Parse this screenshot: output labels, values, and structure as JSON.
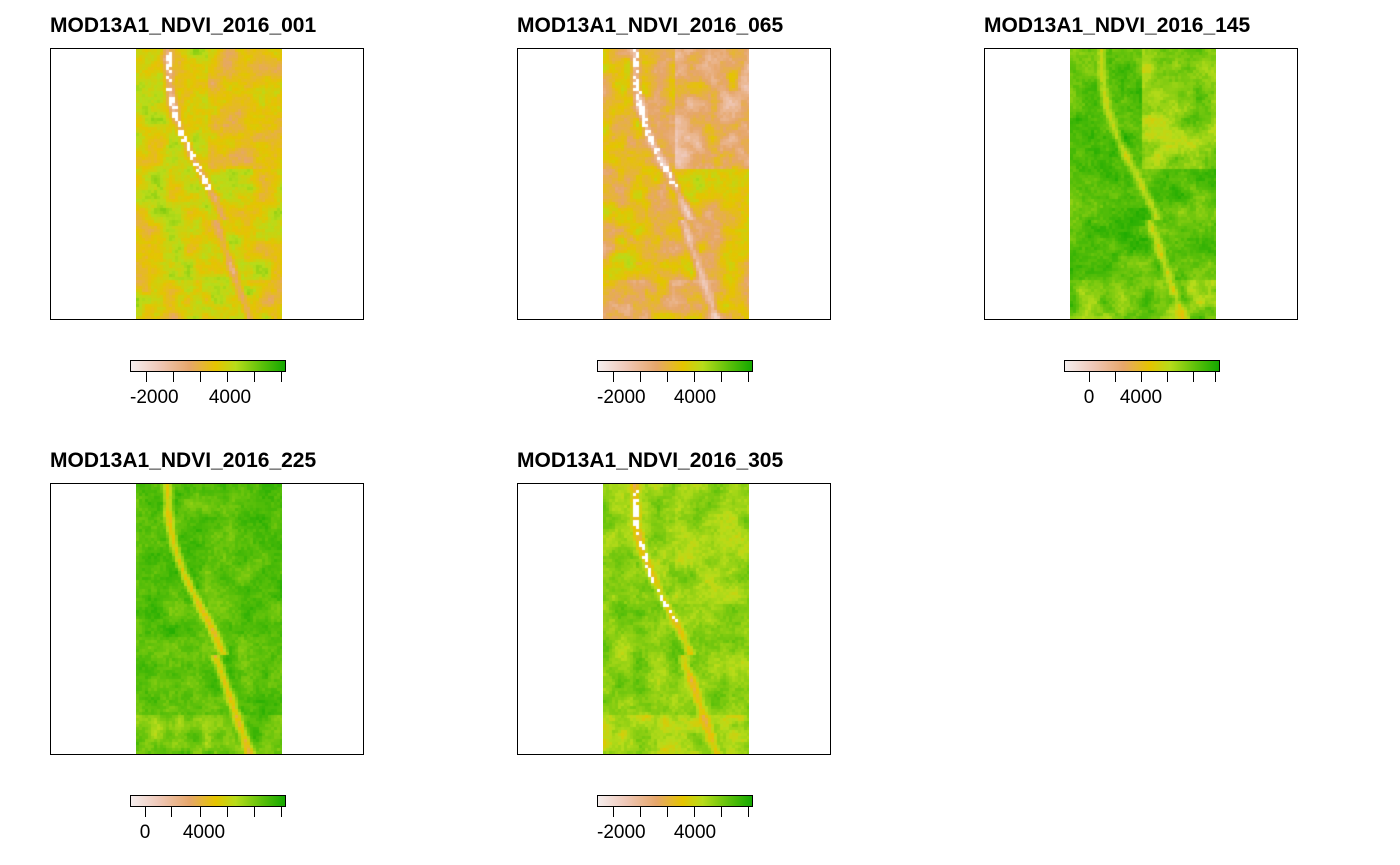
{
  "panels": [
    {
      "title": "MOD13A1_NDVI_2016_001",
      "legend_labels": [
        "-2000",
        "4000"
      ],
      "tick_count": 6
    },
    {
      "title": "MOD13A1_NDVI_2016_065",
      "legend_labels": [
        "-2000",
        "4000"
      ],
      "tick_count": 6
    },
    {
      "title": "MOD13A1_NDVI_2016_145",
      "legend_labels": [
        "0",
        "4000"
      ],
      "tick_count": 6
    },
    {
      "title": "MOD13A1_NDVI_2016_225",
      "legend_labels": [
        "0",
        "4000"
      ],
      "tick_count": 6
    },
    {
      "title": "MOD13A1_NDVI_2016_305",
      "legend_labels": [
        "-2000",
        "4000"
      ],
      "tick_count": 6
    }
  ],
  "colors": {
    "low": "#f5eeee",
    "pink": "#efc8b8",
    "orange": "#e6a66a",
    "yellow": "#e5c400",
    "lime": "#b7dc1a",
    "green": "#5cc00a",
    "high": "#14a800"
  }
}
